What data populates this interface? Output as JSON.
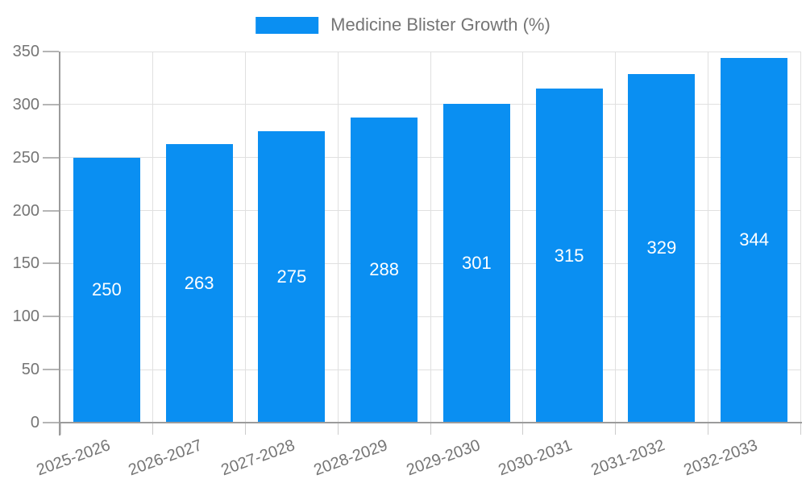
{
  "legend": {
    "label": "Medicine Blister Growth (%)"
  },
  "chart_data": {
    "type": "bar",
    "title": "Medicine Blister Growth (%)",
    "categories": [
      "2025-2026",
      "2026-2027",
      "2027-2028",
      "2028-2029",
      "2029-2030",
      "2030-2031",
      "2031-2032",
      "2032-2033"
    ],
    "values": [
      250,
      263,
      275,
      288,
      301,
      315,
      329,
      344
    ],
    "xlabel": "",
    "ylabel": "",
    "ylim": [
      0,
      350
    ],
    "ytick_step": 50,
    "yticks": [
      0,
      50,
      100,
      150,
      200,
      250,
      300,
      350
    ],
    "grid": true,
    "legend_position": "top-center",
    "bar_color": "#0a8ff2",
    "value_label_color": "#ffffff",
    "axis_text_color": "#757575",
    "x_tick_rotation_deg": -20
  }
}
